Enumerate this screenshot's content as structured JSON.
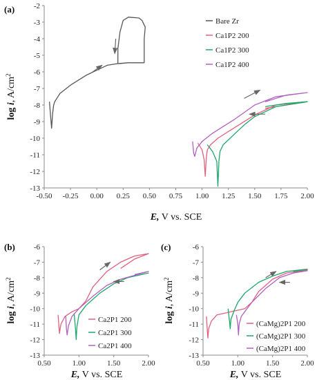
{
  "chart_data": [
    {
      "panel": "(a)",
      "type": "line",
      "xlabel_var": "E,",
      "xlabel_rest": " V vs. SCE",
      "ylabel_pre": "log ",
      "ylabel_var": "i",
      "ylabel_rest": ", A/cm",
      "ylabel_sup": "2",
      "xlim": [
        -0.5,
        2.0
      ],
      "ylim": [
        -13,
        -2
      ],
      "xticks": [
        "-0.50",
        "-0.25",
        "0.00",
        "0.25",
        "0.50",
        "0.75",
        "1.00",
        "1.25",
        "1.50",
        "1.75",
        "2.00"
      ],
      "xtick_values": [
        -0.5,
        -0.25,
        0,
        0.25,
        0.5,
        0.75,
        1.0,
        1.25,
        1.5,
        1.75,
        2.0
      ],
      "yticks": [
        "-2",
        "-3",
        "-4",
        "-5",
        "-6",
        "-7",
        "-8",
        "-9",
        "-10",
        "-11",
        "-12",
        "-13"
      ],
      "ytick_values": [
        -2,
        -3,
        -4,
        -5,
        -6,
        -7,
        -8,
        -9,
        -10,
        -11,
        -12,
        -13
      ],
      "grid": false,
      "legend_position": "top-right",
      "series": [
        {
          "name": "Bare Zr",
          "color": "#555555",
          "x": [
            -0.45,
            -0.44,
            -0.43,
            -0.42,
            -0.41,
            -0.4,
            -0.35,
            -0.25,
            -0.1,
            0.0,
            0.1,
            0.2,
            0.3,
            0.4,
            0.45,
            0.45,
            0.46,
            0.43,
            0.4,
            0.3,
            0.25,
            0.22,
            0.2,
            0.2,
            0.22,
            0.3,
            0.4,
            0.44
          ],
          "y": [
            -7.8,
            -8.6,
            -9.4,
            -8.5,
            -8.0,
            -7.8,
            -7.3,
            -6.8,
            -6.2,
            -5.9,
            -5.6,
            -5.5,
            -5.45,
            -5.45,
            -5.45,
            -4.0,
            -3.3,
            -2.9,
            -2.75,
            -2.7,
            -2.9,
            -3.6,
            -4.6,
            -5.5,
            -5.5,
            -5.45,
            -5.45,
            -5.45
          ]
        },
        {
          "name": "Ca1P2 200",
          "color": "#e0607e",
          "x": [
            0.96,
            1.0,
            1.02,
            1.03,
            1.04,
            1.05,
            1.08,
            1.15,
            1.3,
            1.5,
            1.7,
            2.0,
            2.0,
            1.8,
            1.6
          ],
          "y": [
            -10.3,
            -10.7,
            -11.3,
            -12.3,
            -11.2,
            -10.7,
            -10.4,
            -10.0,
            -9.4,
            -8.6,
            -8.0,
            -7.8,
            -7.8,
            -8.0,
            -8.2
          ]
        },
        {
          "name": "Ca1P2 300",
          "color": "#1aa86a",
          "x": [
            1.05,
            1.1,
            1.14,
            1.15,
            1.16,
            1.17,
            1.2,
            1.3,
            1.4,
            1.5,
            1.7,
            2.0,
            2.0,
            1.8,
            1.6
          ],
          "y": [
            -10.4,
            -10.8,
            -11.4,
            -12.9,
            -11.4,
            -10.8,
            -10.4,
            -9.8,
            -9.2,
            -8.7,
            -8.1,
            -7.8,
            -7.8,
            -7.9,
            -8.1
          ]
        },
        {
          "name": "Ca1P2 400",
          "color": "#b05fc0",
          "x": [
            0.91,
            0.92,
            0.93,
            0.95,
            1.0,
            1.1,
            1.3,
            1.5,
            1.7,
            2.0,
            2.0,
            1.8,
            1.6
          ],
          "y": [
            -10.2,
            -10.9,
            -11.1,
            -10.6,
            -10.2,
            -9.7,
            -8.9,
            -8.0,
            -7.5,
            -7.25,
            -7.25,
            -7.4,
            -7.8
          ]
        }
      ],
      "arrows": [
        {
          "x1": -0.05,
          "y1": -6.05,
          "x2": 0.05,
          "y2": -5.6
        },
        {
          "x1": 0.18,
          "y1": -4.0,
          "x2": 0.17,
          "y2": -4.9
        },
        {
          "x1": 1.4,
          "y1": -7.6,
          "x2": 1.55,
          "y2": -7.1
        },
        {
          "x1": 1.6,
          "y1": -8.55,
          "x2": 1.45,
          "y2": -8.55
        }
      ]
    },
    {
      "panel": "(b)",
      "type": "line",
      "xlabel_var": "E,",
      "xlabel_rest": " V vs. SCE",
      "ylabel_pre": "log ",
      "ylabel_var": "i",
      "ylabel_rest": ", A/cm",
      "ylabel_sup": "2",
      "xlim": [
        0.5,
        2.0
      ],
      "ylim": [
        -13,
        -6
      ],
      "xticks": [
        "0.50",
        "1.00",
        "1.50",
        "2.00"
      ],
      "xtick_values": [
        0.5,
        1.0,
        1.5,
        2.0
      ],
      "yticks": [
        "-6",
        "-7",
        "-8",
        "-9",
        "-10",
        "-11",
        "-12",
        "-13"
      ],
      "ytick_values": [
        -6,
        -7,
        -8,
        -9,
        -10,
        -11,
        -12,
        -13
      ],
      "grid": false,
      "legend_position": "bottom-right",
      "series": [
        {
          "name": "Ca2P1 200",
          "color": "#e0607e",
          "x": [
            0.7,
            0.71,
            0.72,
            0.74,
            0.8,
            0.9,
            1.0,
            1.1,
            1.2,
            1.4,
            1.6,
            1.8,
            2.0,
            2.0,
            1.8,
            1.6
          ],
          "y": [
            -10.4,
            -11.0,
            -11.6,
            -11.0,
            -10.5,
            -10.2,
            -10.0,
            -9.5,
            -8.6,
            -7.6,
            -7.0,
            -6.6,
            -6.45,
            -6.45,
            -6.8,
            -7.4
          ]
        },
        {
          "name": "Ca2P1 300",
          "color": "#1aa86a",
          "x": [
            0.93,
            0.95,
            0.96,
            0.97,
            1.0,
            1.1,
            1.3,
            1.5,
            1.7,
            2.0,
            2.0,
            1.8
          ],
          "y": [
            -10.3,
            -11.3,
            -12.0,
            -11.2,
            -10.4,
            -9.8,
            -9.0,
            -8.4,
            -8.0,
            -7.7,
            -7.7,
            -7.9
          ]
        },
        {
          "name": "Ca2P1 400",
          "color": "#b05fc0",
          "x": [
            0.81,
            0.82,
            0.83,
            0.85,
            0.9,
            1.0,
            1.2,
            1.4,
            1.6,
            2.0,
            2.0,
            1.8
          ],
          "y": [
            -10.5,
            -11.3,
            -11.7,
            -11.1,
            -10.5,
            -10.0,
            -9.2,
            -8.5,
            -8.1,
            -7.6,
            -7.6,
            -7.8
          ]
        }
      ],
      "arrows": [
        {
          "x1": 1.3,
          "y1": -7.5,
          "x2": 1.45,
          "y2": -7.0
        },
        {
          "x1": 1.65,
          "y1": -8.25,
          "x2": 1.5,
          "y2": -8.25
        }
      ]
    },
    {
      "panel": "(c)",
      "type": "line",
      "xlabel_var": "E,",
      "xlabel_rest": " V vs. SCE",
      "ylabel_pre": "log ",
      "ylabel_var": "i",
      "ylabel_rest": ", A/cm",
      "ylabel_sup": "2",
      "xlim": [
        0.5,
        2.0
      ],
      "ylim": [
        -13,
        -6
      ],
      "xticks": [
        "0.50",
        "1.00",
        "1.50",
        "2.00"
      ],
      "xtick_values": [
        0.5,
        1.0,
        1.5,
        2.0
      ],
      "yticks": [
        "-6",
        "-7",
        "-8",
        "-9",
        "-10",
        "-11",
        "-12",
        "-13"
      ],
      "ytick_values": [
        -6,
        -7,
        -8,
        -9,
        -10,
        -11,
        -12,
        -13
      ],
      "grid": false,
      "legend_position": "bottom-right",
      "series": [
        {
          "name": "(CaMg)2P1 200",
          "color": "#e0607e",
          "x": [
            0.55,
            0.56,
            0.57,
            0.58,
            0.62,
            0.7,
            0.9,
            1.1,
            1.2,
            1.3,
            1.5,
            1.7,
            2.0,
            2.0,
            1.8
          ],
          "y": [
            -10.5,
            -11.3,
            -11.9,
            -11.3,
            -10.8,
            -10.4,
            -10.2,
            -10.0,
            -9.6,
            -8.9,
            -8.1,
            -7.7,
            -7.5,
            -7.5,
            -7.7
          ]
        },
        {
          "name": "(CaMg)2P1 300",
          "color": "#1aa86a",
          "x": [
            0.86,
            0.88,
            0.89,
            0.9,
            0.95,
            1.0,
            1.1,
            1.3,
            1.5,
            1.7,
            2.0,
            2.0,
            1.8
          ],
          "y": [
            -10.0,
            -10.8,
            -11.3,
            -10.7,
            -10.1,
            -9.6,
            -9.0,
            -8.3,
            -7.9,
            -7.6,
            -7.45,
            -7.45,
            -7.6
          ]
        },
        {
          "name": "(CaMg)2P1 400",
          "color": "#b05fc0",
          "x": [
            0.98,
            1.0,
            1.01,
            1.02,
            1.05,
            1.1,
            1.2,
            1.4,
            1.6,
            1.8,
            2.0,
            2.0,
            1.8
          ],
          "y": [
            -10.4,
            -11.0,
            -11.7,
            -11.0,
            -10.5,
            -10.2,
            -9.6,
            -8.7,
            -8.0,
            -7.7,
            -7.55,
            -7.55,
            -7.7
          ]
        }
      ],
      "arrows": [
        {
          "x1": 1.4,
          "y1": -8.0,
          "x2": 1.55,
          "y2": -7.6
        },
        {
          "x1": 1.75,
          "y1": -8.3,
          "x2": 1.6,
          "y2": -8.3
        }
      ]
    }
  ]
}
